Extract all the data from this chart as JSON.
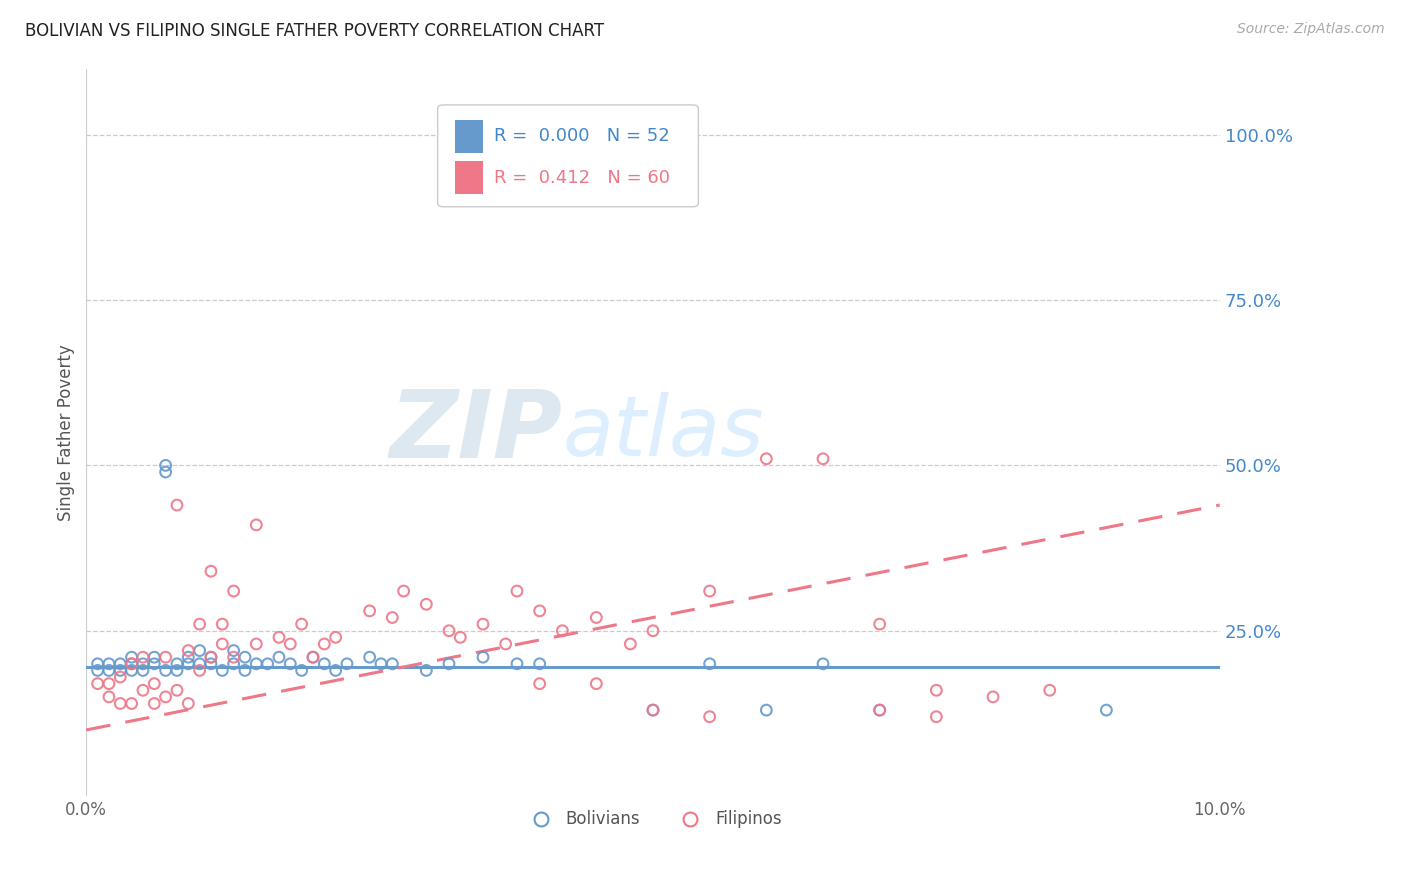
{
  "title": "BOLIVIAN VS FILIPINO SINGLE FATHER POVERTY CORRELATION CHART",
  "source_text": "Source: ZipAtlas.com",
  "ylabel": "Single Father Poverty",
  "xlim": [
    0.0,
    0.1
  ],
  "ylim": [
    0.0,
    1.1
  ],
  "xtick_labels": [
    "0.0%",
    "10.0%"
  ],
  "xtick_positions": [
    0.0,
    0.1
  ],
  "ytick_labels": [
    "25.0%",
    "50.0%",
    "75.0%",
    "100.0%"
  ],
  "ytick_positions": [
    0.25,
    0.5,
    0.75,
    1.0
  ],
  "bolivian_color": "#6699cc",
  "filipino_color": "#ee7788",
  "bolivian_R": 0.0,
  "bolivian_N": 52,
  "filipino_R": 0.412,
  "filipino_N": 60,
  "bolivian_trend_y": [
    0.195,
    0.195
  ],
  "filipino_trend": [
    0.1,
    0.44
  ],
  "bolivian_points": [
    [
      0.001,
      0.2
    ],
    [
      0.001,
      0.19
    ],
    [
      0.002,
      0.2
    ],
    [
      0.002,
      0.19
    ],
    [
      0.003,
      0.2
    ],
    [
      0.003,
      0.19
    ],
    [
      0.004,
      0.21
    ],
    [
      0.004,
      0.2
    ],
    [
      0.004,
      0.19
    ],
    [
      0.005,
      0.2
    ],
    [
      0.005,
      0.19
    ],
    [
      0.006,
      0.21
    ],
    [
      0.006,
      0.2
    ],
    [
      0.007,
      0.19
    ],
    [
      0.007,
      0.5
    ],
    [
      0.007,
      0.49
    ],
    [
      0.008,
      0.2
    ],
    [
      0.008,
      0.19
    ],
    [
      0.009,
      0.21
    ],
    [
      0.009,
      0.2
    ],
    [
      0.01,
      0.22
    ],
    [
      0.01,
      0.2
    ],
    [
      0.011,
      0.21
    ],
    [
      0.011,
      0.2
    ],
    [
      0.012,
      0.19
    ],
    [
      0.013,
      0.22
    ],
    [
      0.013,
      0.2
    ],
    [
      0.014,
      0.21
    ],
    [
      0.014,
      0.19
    ],
    [
      0.015,
      0.2
    ],
    [
      0.016,
      0.2
    ],
    [
      0.017,
      0.21
    ],
    [
      0.018,
      0.2
    ],
    [
      0.019,
      0.19
    ],
    [
      0.02,
      0.21
    ],
    [
      0.021,
      0.2
    ],
    [
      0.022,
      0.19
    ],
    [
      0.023,
      0.2
    ],
    [
      0.025,
      0.21
    ],
    [
      0.026,
      0.2
    ],
    [
      0.027,
      0.2
    ],
    [
      0.03,
      0.19
    ],
    [
      0.032,
      0.2
    ],
    [
      0.035,
      0.21
    ],
    [
      0.038,
      0.2
    ],
    [
      0.04,
      0.2
    ],
    [
      0.05,
      0.13
    ],
    [
      0.055,
      0.2
    ],
    [
      0.06,
      0.13
    ],
    [
      0.065,
      0.2
    ],
    [
      0.07,
      0.13
    ],
    [
      0.09,
      0.13
    ]
  ],
  "filipino_points": [
    [
      0.001,
      0.17
    ],
    [
      0.002,
      0.15
    ],
    [
      0.002,
      0.17
    ],
    [
      0.003,
      0.14
    ],
    [
      0.003,
      0.18
    ],
    [
      0.004,
      0.14
    ],
    [
      0.004,
      0.2
    ],
    [
      0.005,
      0.16
    ],
    [
      0.005,
      0.21
    ],
    [
      0.006,
      0.14
    ],
    [
      0.006,
      0.17
    ],
    [
      0.007,
      0.15
    ],
    [
      0.007,
      0.21
    ],
    [
      0.008,
      0.16
    ],
    [
      0.008,
      0.44
    ],
    [
      0.009,
      0.14
    ],
    [
      0.009,
      0.22
    ],
    [
      0.01,
      0.19
    ],
    [
      0.01,
      0.26
    ],
    [
      0.011,
      0.21
    ],
    [
      0.011,
      0.34
    ],
    [
      0.012,
      0.23
    ],
    [
      0.012,
      0.26
    ],
    [
      0.013,
      0.21
    ],
    [
      0.013,
      0.31
    ],
    [
      0.015,
      0.23
    ],
    [
      0.015,
      0.41
    ],
    [
      0.017,
      0.24
    ],
    [
      0.018,
      0.23
    ],
    [
      0.019,
      0.26
    ],
    [
      0.02,
      0.21
    ],
    [
      0.021,
      0.23
    ],
    [
      0.022,
      0.24
    ],
    [
      0.025,
      0.28
    ],
    [
      0.027,
      0.27
    ],
    [
      0.028,
      0.31
    ],
    [
      0.03,
      0.29
    ],
    [
      0.032,
      0.25
    ],
    [
      0.033,
      0.24
    ],
    [
      0.035,
      0.26
    ],
    [
      0.037,
      0.23
    ],
    [
      0.038,
      0.31
    ],
    [
      0.04,
      0.28
    ],
    [
      0.042,
      0.25
    ],
    [
      0.045,
      0.27
    ],
    [
      0.048,
      0.23
    ],
    [
      0.05,
      0.25
    ],
    [
      0.055,
      0.31
    ],
    [
      0.06,
      0.51
    ],
    [
      0.065,
      0.51
    ],
    [
      0.07,
      0.26
    ],
    [
      0.07,
      0.13
    ],
    [
      0.075,
      0.16
    ],
    [
      0.075,
      0.12
    ],
    [
      0.08,
      0.15
    ],
    [
      0.085,
      0.16
    ],
    [
      0.04,
      0.17
    ],
    [
      0.045,
      0.17
    ],
    [
      0.05,
      0.13
    ],
    [
      0.055,
      0.12
    ]
  ]
}
